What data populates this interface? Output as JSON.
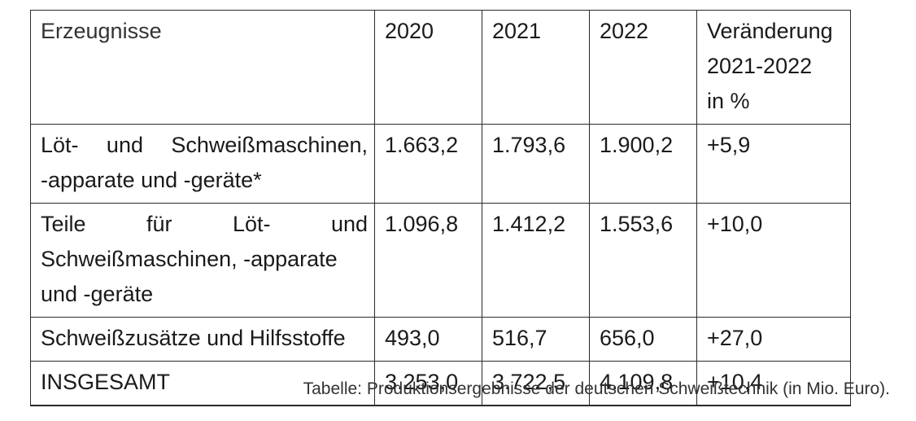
{
  "table": {
    "headers": {
      "product": "Erzeugnisse",
      "y2020": "2020",
      "y2021": "2021",
      "y2022": "2022",
      "change_line1": "Veränderung",
      "change_line2": "2021-2022",
      "change_line3": "in %"
    },
    "rows": [
      {
        "product_line1": "Löt- und Schweißmaschinen,",
        "product_line2": "-apparate und -geräte*",
        "y2020": "1.663,2",
        "y2021": "1.793,6",
        "y2022": "1.900,2",
        "change": "+5,9"
      },
      {
        "product_line1": "Teile für Löt- und",
        "product_line2": "Schweißmaschinen, -apparate",
        "product_line3": "und -geräte",
        "y2020": "1.096,8",
        "y2021": "1.412,2",
        "y2022": "1.553,6",
        "change": "+10,0"
      },
      {
        "product_line1": "Schweißzusätze und Hilfsstoffe",
        "y2020": "493,0",
        "y2021": "516,7",
        "y2022": "656,0",
        "change": "+27,0"
      },
      {
        "product_line1": "INSGESAMT",
        "y2020": "3.253,0",
        "y2021": "3.722,5",
        "y2022": "4.109,8",
        "change": "+10,4"
      }
    ]
  },
  "caption": "Tabelle: Produktionsergebnisse der deutschen Schweißtechnik (in Mio. Euro)."
}
